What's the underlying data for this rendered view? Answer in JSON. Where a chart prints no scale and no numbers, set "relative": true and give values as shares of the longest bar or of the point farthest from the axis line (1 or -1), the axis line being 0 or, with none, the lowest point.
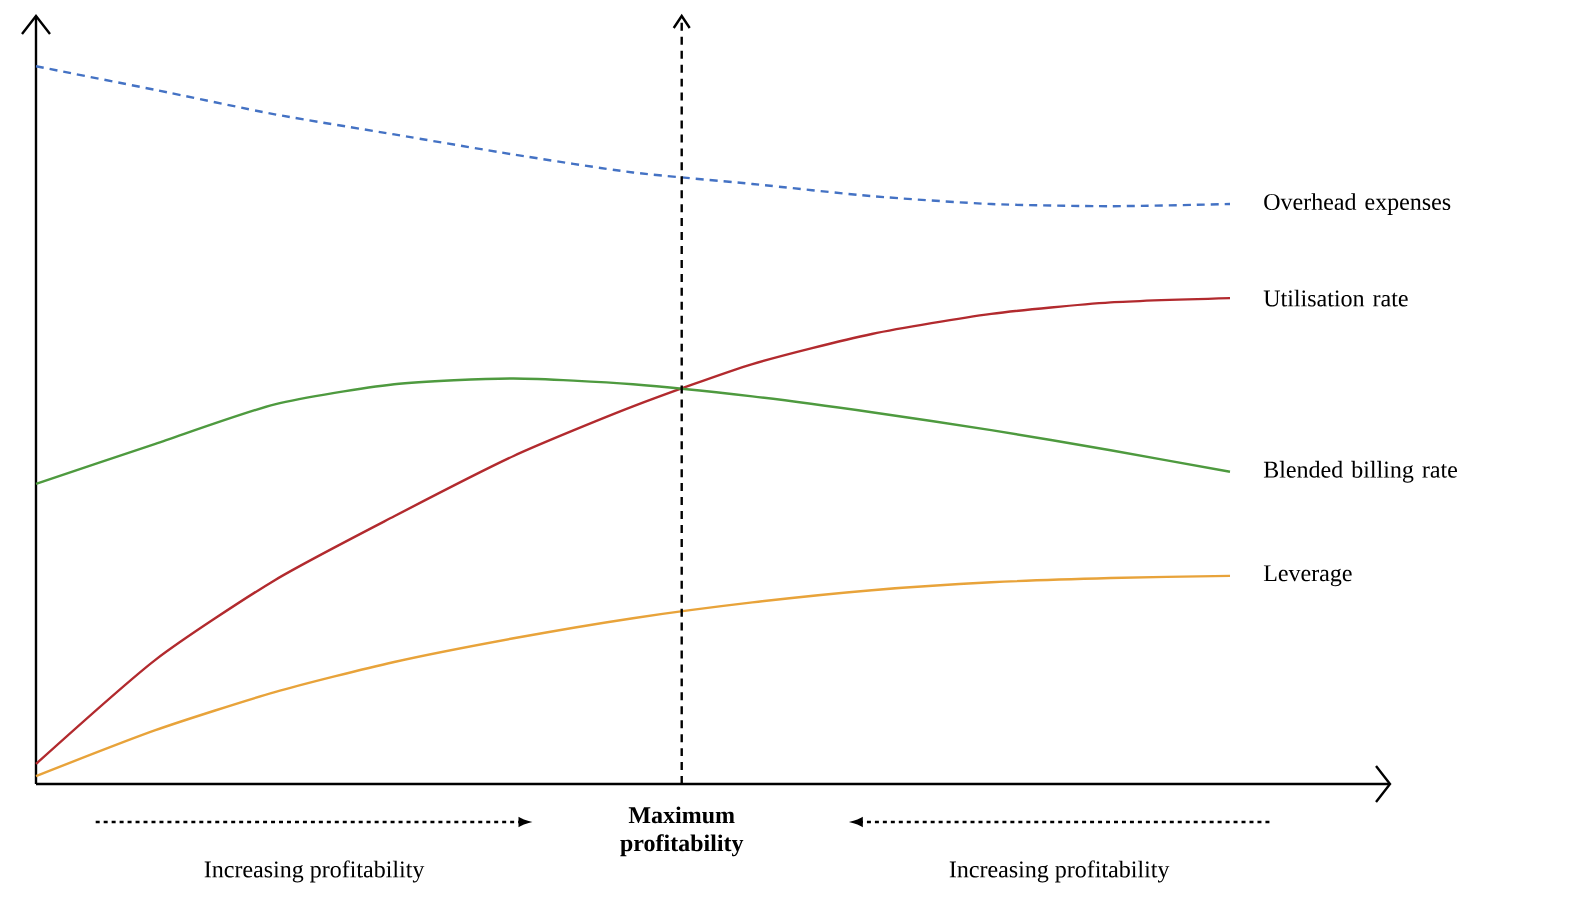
{
  "chart_data": {
    "type": "line",
    "relative": true,
    "legend": false,
    "categories": [
      null,
      null,
      null,
      null,
      null,
      null,
      null,
      null,
      null,
      null,
      null
    ],
    "series": [
      {
        "name": "Overhead expenses",
        "color": "#4472c4",
        "line_style": "dashed",
        "values": [
          1.0,
          0.967,
          0.933,
          0.905,
          0.877,
          0.852,
          0.836,
          0.819,
          0.808,
          0.805,
          0.808
        ]
      },
      {
        "name": "Utilisation rate",
        "color": "#b22a2e",
        "values": [
          0.028,
          0.173,
          0.284,
          0.373,
          0.457,
          0.526,
          0.585,
          0.627,
          0.655,
          0.671,
          0.677
        ]
      },
      {
        "name": "Blended billing rate",
        "color": "#4e9a3f",
        "values": [
          0.418,
          0.474,
          0.529,
          0.557,
          0.565,
          0.557,
          0.54,
          0.518,
          0.493,
          0.465,
          0.435
        ]
      },
      {
        "name": "Leverage",
        "color": "#e8a33a",
        "values": [
          0.011,
          0.075,
          0.128,
          0.17,
          0.203,
          0.231,
          0.253,
          0.27,
          0.281,
          0.287,
          0.29
        ]
      }
    ],
    "annotations": [
      "Increasing profitability",
      "**Maximum profitability**",
      "Increasing profitability"
    ]
  }
}
